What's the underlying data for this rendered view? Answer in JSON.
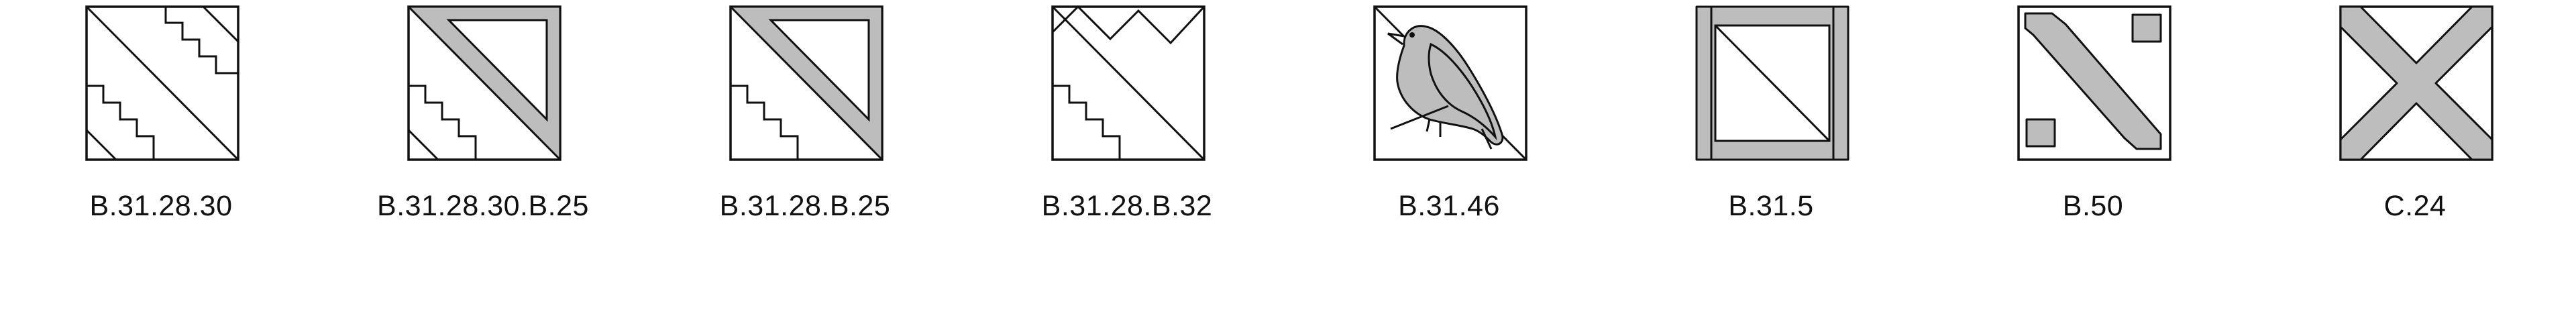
{
  "colors": {
    "line": "#111111",
    "fill": "#bdbdbd",
    "background": "#ffffff"
  },
  "symbols": [
    {
      "label": "B.31.28.30",
      "icon": "stepped-diagonal-pattern-icon"
    },
    {
      "label": "B.31.28.30.B.25",
      "icon": "stepped-triangle-pattern-icon"
    },
    {
      "label": "B.31.28.B.25",
      "icon": "stepped-triangle-pattern-icon"
    },
    {
      "label": "B.31.28.B.32",
      "icon": "zigzag-stepped-diagonal-icon"
    },
    {
      "label": "B.31.46",
      "icon": "bird-icon"
    },
    {
      "label": "B.31.5",
      "icon": "framed-diagonal-icon"
    },
    {
      "label": "B.50",
      "icon": "corner-squares-diagonal-icon"
    },
    {
      "label": "C.24",
      "icon": "saltire-cross-icon"
    }
  ]
}
